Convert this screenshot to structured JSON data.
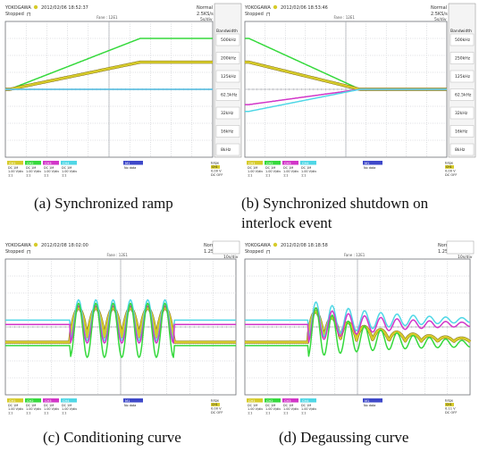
{
  "figures": [
    {
      "id": "a",
      "caption": "(a) Synchronized ramp",
      "scope": {
        "brand": "YOKOGAWA",
        "status": "Stopped",
        "datetime": "2012/02/06 18:52:37",
        "mode": "Normal",
        "sample_rate": "2.5KS/s",
        "timebase": "5s/div",
        "center_label": "Fane : 12E1",
        "side_title": "Bandwidth",
        "bandwidth_menu": [
          "500kHz",
          "200kHz",
          "125kHz",
          "62.5kHz",
          "32kHz",
          "16kHz",
          "8kHz"
        ],
        "trigger": {
          "mode": "Edge",
          "source": "CH1",
          "level": "0.00 V",
          "coupling": "DC OFF"
        }
      }
    },
    {
      "id": "b",
      "caption": "(b) Synchronized shutdown on interlock event",
      "scope": {
        "brand": "YOKOGAWA",
        "status": "Stopped",
        "datetime": "2012/02/06 18:53:46",
        "mode": "Normal",
        "sample_rate": "2.5KS/s",
        "timebase": "5s/div",
        "center_label": "Fane : 12E1",
        "side_title": "Bandwidth",
        "bandwidth_menu": [
          "500kHz",
          "250kHz",
          "125kHz",
          "62.5kHz",
          "32kHz",
          "16kHz",
          "8kHz"
        ],
        "trigger": {
          "mode": "Edge",
          "source": "CH1",
          "level": "0.00 V",
          "coupling": "DC OFF"
        }
      }
    },
    {
      "id": "c",
      "caption": "(c) Conditioning curve",
      "scope": {
        "brand": "YOKOGAWA",
        "status": "Stopped",
        "datetime": "2012/02/08 18:02:00",
        "mode": "Normal",
        "sample_rate": "1.25kS/s",
        "timebase": "10s/div",
        "center_label": "Fane : 12E1",
        "side_title": "",
        "bandwidth_menu": [],
        "trigger": {
          "mode": "Edge",
          "source": "CH1",
          "level": "0.00 V",
          "coupling": "DC OFF"
        }
      }
    },
    {
      "id": "d",
      "caption": "(d) Degaussing curve",
      "scope": {
        "brand": "YOKOGAWA",
        "status": "Stopped",
        "datetime": "2012/02/08 18:18:58",
        "mode": "Normal",
        "sample_rate": "1.25kS/s",
        "timebase": "10s/div",
        "center_label": "Fane : 12E1",
        "side_title": "",
        "bandwidth_menu": [],
        "trigger": {
          "mode": "Edge",
          "source": "CH1",
          "level": "0.11 V",
          "coupling": "DC OFF"
        }
      }
    }
  ],
  "channel_labels": [
    "CH1",
    "CH2",
    "CH3",
    "CH4"
  ],
  "math_label": "M1",
  "math_value": "No data",
  "channel_settings": [
    [
      "DC 1M",
      "1.00 V/div",
      "1:1"
    ],
    [
      "DC 1M",
      "1.00 V/div",
      "1:1"
    ],
    [
      "DC 1M",
      "1.00 V/div",
      "1:1"
    ],
    [
      "DC 1M",
      "1.00 V/div",
      "1:1"
    ]
  ],
  "colors": {
    "ch1": "#d6cb2a",
    "ch1_shadow": "#6e5a10",
    "ch2": "#35d93c",
    "ch3": "#d236c8",
    "ch4": "#4fd7e6",
    "math": "#3e48c9",
    "grid": "#b9bcc2",
    "screen": "#ffffff",
    "frame": "#6c6f74"
  },
  "waveforms": {
    "a": [
      {
        "channel": "ch2",
        "shape": "ramp_up",
        "end_level": 3.0
      },
      {
        "channel": "ch1",
        "shape": "ramp_up",
        "end_level": 1.6
      },
      {
        "channel": "ch3",
        "shape": "ramp_down",
        "end_level": -1.1
      },
      {
        "channel": "ch4",
        "shape": "ramp_down",
        "end_level": -2.0
      }
    ],
    "b": [
      {
        "channel": "ch2",
        "shape": "ramp_to_zero",
        "start_level": 3.0
      },
      {
        "channel": "ch1",
        "shape": "ramp_to_zero",
        "start_level": 1.6
      },
      {
        "channel": "ch3",
        "shape": "ramp_to_zero",
        "start_level": -0.9
      },
      {
        "channel": "ch4",
        "shape": "ramp_to_zero",
        "start_level": -1.3
      }
    ],
    "c": [
      {
        "channel": "ch1",
        "shape": "pulses",
        "cycles": 6,
        "amplitude": 1.8
      },
      {
        "channel": "ch4",
        "shape": "sine",
        "cycles": 6,
        "amplitude": 1.2
      },
      {
        "channel": "ch3",
        "shape": "sine",
        "cycles": 6,
        "amplitude": 1.1
      },
      {
        "channel": "ch2",
        "shape": "sine",
        "cycles": 6,
        "amplitude": 1.6
      }
    ],
    "d": [
      {
        "channel": "ch1",
        "shape": "decaying_pulses",
        "cycles": 10,
        "amplitude": 1.8
      },
      {
        "channel": "ch4",
        "shape": "decaying_sine",
        "cycles": 10,
        "amplitude": 1.2
      },
      {
        "channel": "ch3",
        "shape": "decaying_sine",
        "cycles": 10,
        "amplitude": 1.1
      },
      {
        "channel": "ch2",
        "shape": "decaying_sine",
        "cycles": 10,
        "amplitude": 1.6
      }
    ]
  }
}
